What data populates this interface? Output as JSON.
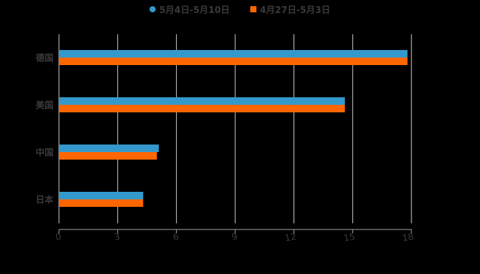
{
  "chart_data": {
    "type": "bar",
    "orientation": "horizontal",
    "title": "",
    "xlabel": "",
    "ylabel": "",
    "categories": [
      "德国",
      "美国",
      "中国",
      "日本"
    ],
    "series": [
      {
        "name": "5月4日-5月10日",
        "color": "#3399cc",
        "marker": "circle",
        "values": [
          17.8,
          14.6,
          5.1,
          4.3
        ]
      },
      {
        "name": "4月27日-5月3日",
        "color": "#ff6600",
        "marker": "square",
        "values": [
          17.8,
          14.6,
          5.0,
          4.3
        ]
      }
    ],
    "xlim": [
      0,
      18
    ],
    "x_ticks": [
      0,
      3,
      6,
      9,
      12,
      15,
      18
    ],
    "x_tick_labels": [
      "0",
      "3",
      "6",
      "9",
      "12",
      "15",
      "18"
    ],
    "grid": {
      "vertical": true,
      "horizontal": false
    },
    "legend_position": "top",
    "background": "#000000",
    "gridline_color": "#d9d9d9",
    "label_color": "#3a3a3a"
  },
  "legend": {
    "items": [
      {
        "label": "5月4日-5月10日",
        "color": "#3399cc"
      },
      {
        "label": "4月27日-5月3日",
        "color": "#ff6600"
      }
    ]
  }
}
